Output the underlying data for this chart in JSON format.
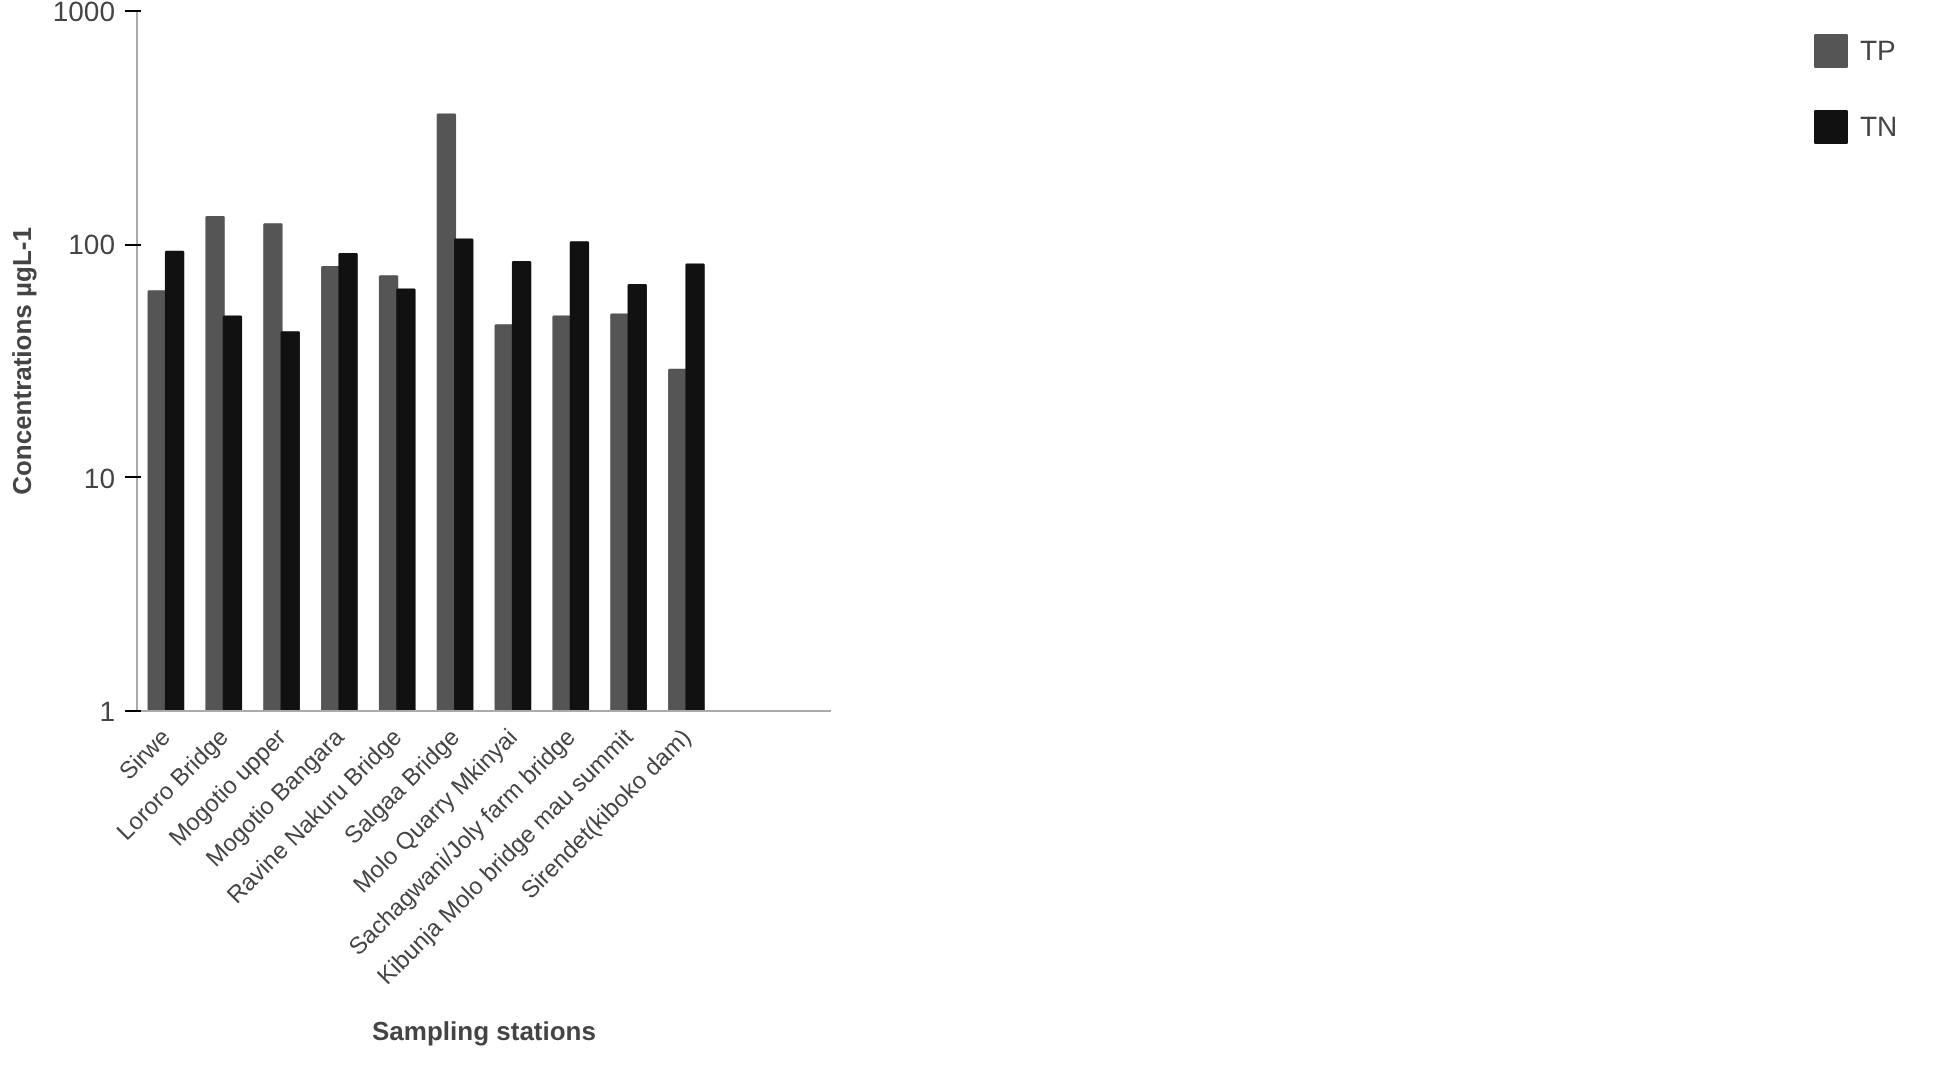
{
  "chart_data": {
    "type": "bar",
    "xlabel": "Sampling stations",
    "ylabel": "Concentrations µgL-1",
    "categories": [
      "Sirwe",
      "Lororo Bridge",
      "Mogotio upper",
      "Mogotio Bangara",
      "Ravine Nakuru Bridge",
      "Salgaa Bridge",
      "Molo Quarry Mkinyai",
      "Sachagwani/Joly farm bridge",
      "Kibunja Molo bridge mau summit",
      "Sirendet(kiboko dam)",
      null,
      null
    ],
    "series": [
      {
        "name": "TP",
        "color": "#555555",
        "values": [
          63,
          131,
          122,
          80,
          73,
          360,
          45,
          49,
          50,
          29,
          null,
          null
        ]
      },
      {
        "name": "TN",
        "color": "#111111",
        "values": [
          93,
          49,
          42,
          91,
          64,
          105,
          84,
          102,
          67,
          82,
          null,
          null
        ]
      }
    ],
    "log": true,
    "ylim": [
      1,
      1000
    ],
    "yticks": [
      1,
      10,
      100,
      1000
    ],
    "grid": false,
    "legend": "right"
  }
}
